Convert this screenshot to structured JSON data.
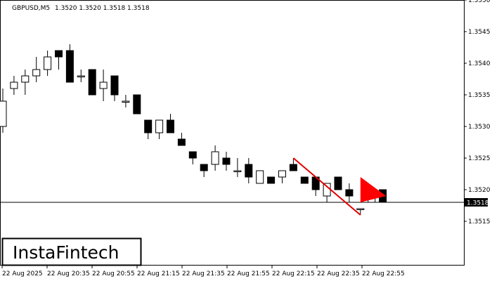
{
  "header": {
    "symbol": "GBPUSD,M5",
    "ohlc": "1.3520 1.3520 1.3518 1.3518"
  },
  "brand": {
    "name": "InstaFintech"
  },
  "current_price_label": "1.3518",
  "colors": {
    "bull_fill": "#ffffff",
    "bear_fill": "#000000",
    "candle_border": "#000000",
    "pattern_line": "#e00000",
    "pattern_flag": "#ff0000",
    "price_label_bg": "#000000"
  },
  "chart_data": {
    "type": "candlestick",
    "title": "GBPUSD,M5",
    "ylim": [
      1.3508,
      1.355
    ],
    "y_ticks": [
      "1.3550",
      "1.3545",
      "1.3540",
      "1.3535",
      "1.3530",
      "1.3525",
      "1.3520",
      "1.3515"
    ],
    "x_tick_labels": [
      "22 Aug 2025",
      "22 Aug 20:35",
      "22 Aug 20:55",
      "22 Aug 21:15",
      "22 Aug 21:35",
      "22 Aug 21:55",
      "22 Aug 22:15",
      "22 Aug 22:35",
      "22 Aug 22:55"
    ],
    "current_price": 1.3518,
    "candles": [
      {
        "o": 1.353,
        "h": 1.3536,
        "l": 1.3529,
        "c": 1.3534
      },
      {
        "o": 1.3536,
        "h": 1.3538,
        "l": 1.3535,
        "c": 1.3537
      },
      {
        "o": 1.3537,
        "h": 1.3539,
        "l": 1.3535,
        "c": 1.3538
      },
      {
        "o": 1.3538,
        "h": 1.3541,
        "l": 1.3537,
        "c": 1.3539
      },
      {
        "o": 1.3539,
        "h": 1.3542,
        "l": 1.3538,
        "c": 1.3541
      },
      {
        "o": 1.3542,
        "h": 1.3542,
        "l": 1.3539,
        "c": 1.3541
      },
      {
        "o": 1.3542,
        "h": 1.3543,
        "l": 1.3537,
        "c": 1.3537
      },
      {
        "o": 1.3538,
        "h": 1.3539,
        "l": 1.3537,
        "c": 1.3538
      },
      {
        "o": 1.3539,
        "h": 1.3539,
        "l": 1.3535,
        "c": 1.3535
      },
      {
        "o": 1.3536,
        "h": 1.3539,
        "l": 1.3534,
        "c": 1.3537
      },
      {
        "o": 1.3538,
        "h": 1.3538,
        "l": 1.3534,
        "c": 1.3535
      },
      {
        "o": 1.3534,
        "h": 1.3535,
        "l": 1.3533,
        "c": 1.3534
      },
      {
        "o": 1.3535,
        "h": 1.3535,
        "l": 1.3532,
        "c": 1.3532
      },
      {
        "o": 1.3531,
        "h": 1.3531,
        "l": 1.3528,
        "c": 1.3529
      },
      {
        "o": 1.3529,
        "h": 1.3531,
        "l": 1.3528,
        "c": 1.3531
      },
      {
        "o": 1.3531,
        "h": 1.3532,
        "l": 1.3529,
        "c": 1.3529
      },
      {
        "o": 1.3528,
        "h": 1.3529,
        "l": 1.3527,
        "c": 1.3527
      },
      {
        "o": 1.3526,
        "h": 1.3526,
        "l": 1.3524,
        "c": 1.3525
      },
      {
        "o": 1.3524,
        "h": 1.3524,
        "l": 1.3522,
        "c": 1.3523
      },
      {
        "o": 1.3524,
        "h": 1.3527,
        "l": 1.3523,
        "c": 1.3526
      },
      {
        "o": 1.3525,
        "h": 1.3526,
        "l": 1.3523,
        "c": 1.3524
      },
      {
        "o": 1.3523,
        "h": 1.3525,
        "l": 1.3522,
        "c": 1.3523
      },
      {
        "o": 1.3524,
        "h": 1.3525,
        "l": 1.3521,
        "c": 1.3522
      },
      {
        "o": 1.3521,
        "h": 1.3523,
        "l": 1.3521,
        "c": 1.3523
      },
      {
        "o": 1.3522,
        "h": 1.3522,
        "l": 1.3521,
        "c": 1.3521
      },
      {
        "o": 1.3522,
        "h": 1.3523,
        "l": 1.3521,
        "c": 1.3523
      },
      {
        "o": 1.3524,
        "h": 1.3525,
        "l": 1.3523,
        "c": 1.3523
      },
      {
        "o": 1.3522,
        "h": 1.3522,
        "l": 1.3521,
        "c": 1.3521
      },
      {
        "o": 1.3522,
        "h": 1.3522,
        "l": 1.3519,
        "c": 1.352
      },
      {
        "o": 1.3519,
        "h": 1.3521,
        "l": 1.3518,
        "c": 1.3521
      },
      {
        "o": 1.3522,
        "h": 1.3522,
        "l": 1.352,
        "c": 1.352
      },
      {
        "o": 1.352,
        "h": 1.3521,
        "l": 1.3518,
        "c": 1.3519
      },
      {
        "o": 1.3517,
        "h": 1.3517,
        "l": 1.3516,
        "c": 1.3517
      },
      {
        "o": 1.3518,
        "h": 1.3519,
        "l": 1.3518,
        "c": 1.3519
      },
      {
        "o": 1.352,
        "h": 1.352,
        "l": 1.3518,
        "c": 1.3518
      }
    ],
    "pattern": {
      "name": "Bearish Flag",
      "line": [
        {
          "i": 26,
          "p": 1.3525
        },
        {
          "i": 32,
          "p": 1.3516
        }
      ],
      "flag": [
        {
          "i": 32,
          "p": 1.3522
        },
        {
          "i": 32,
          "p": 1.3518
        },
        {
          "i": 34.3,
          "p": 1.3519
        }
      ]
    }
  }
}
